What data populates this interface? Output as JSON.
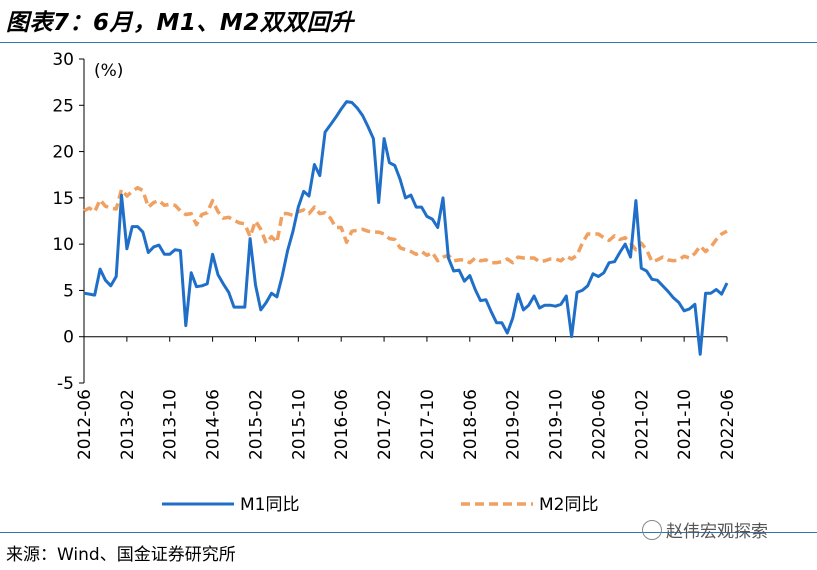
{
  "title": "图表7：6月，M1、M2双双回升",
  "source": "来源：Wind、国金证券研究所",
  "watermark": "赵伟宏观探索",
  "chart_data": {
    "type": "line",
    "unit": "(%)",
    "ylim": [
      -5,
      30
    ],
    "yticks": [
      -5,
      0,
      5,
      10,
      15,
      20,
      25,
      30
    ],
    "xlim": [
      "2012-06",
      "2022-06"
    ],
    "xticks": [
      "2012-06",
      "2013-02",
      "2013-10",
      "2014-06",
      "2015-02",
      "2015-10",
      "2016-06",
      "2017-02",
      "2017-10",
      "2018-06",
      "2019-02",
      "2019-10",
      "2020-06",
      "2021-02",
      "2021-10",
      "2022-06"
    ],
    "grid": false,
    "legend_position": "bottom",
    "series": [
      {
        "name": "M1同比",
        "color": "#1f6fc8",
        "style": "solid",
        "points": [
          [
            "2012-06",
            4.7
          ],
          [
            "2012-07",
            4.6
          ],
          [
            "2012-08",
            4.5
          ],
          [
            "2012-09",
            7.3
          ],
          [
            "2012-10",
            6.1
          ],
          [
            "2012-11",
            5.5
          ],
          [
            "2012-12",
            6.5
          ],
          [
            "2013-01",
            15.3
          ],
          [
            "2013-02",
            9.5
          ],
          [
            "2013-03",
            11.9
          ],
          [
            "2013-04",
            11.9
          ],
          [
            "2013-05",
            11.3
          ],
          [
            "2013-06",
            9.1
          ],
          [
            "2013-07",
            9.7
          ],
          [
            "2013-08",
            9.9
          ],
          [
            "2013-09",
            8.9
          ],
          [
            "2013-10",
            8.9
          ],
          [
            "2013-11",
            9.4
          ],
          [
            "2013-12",
            9.3
          ],
          [
            "2014-01",
            1.2
          ],
          [
            "2014-02",
            6.9
          ],
          [
            "2014-03",
            5.4
          ],
          [
            "2014-04",
            5.5
          ],
          [
            "2014-05",
            5.7
          ],
          [
            "2014-06",
            8.9
          ],
          [
            "2014-07",
            6.7
          ],
          [
            "2014-08",
            5.7
          ],
          [
            "2014-09",
            4.8
          ],
          [
            "2014-10",
            3.2
          ],
          [
            "2014-11",
            3.2
          ],
          [
            "2014-12",
            3.2
          ],
          [
            "2015-01",
            10.6
          ],
          [
            "2015-02",
            5.6
          ],
          [
            "2015-03",
            2.9
          ],
          [
            "2015-04",
            3.7
          ],
          [
            "2015-05",
            4.7
          ],
          [
            "2015-06",
            4.3
          ],
          [
            "2015-07",
            6.6
          ],
          [
            "2015-08",
            9.3
          ],
          [
            "2015-09",
            11.4
          ],
          [
            "2015-10",
            14.0
          ],
          [
            "2015-11",
            15.7
          ],
          [
            "2015-12",
            15.2
          ],
          [
            "2016-01",
            18.6
          ],
          [
            "2016-02",
            17.4
          ],
          [
            "2016-03",
            22.1
          ],
          [
            "2016-04",
            22.9
          ],
          [
            "2016-05",
            23.7
          ],
          [
            "2016-06",
            24.6
          ],
          [
            "2016-07",
            25.4
          ],
          [
            "2016-08",
            25.3
          ],
          [
            "2016-09",
            24.7
          ],
          [
            "2016-10",
            23.9
          ],
          [
            "2016-11",
            22.7
          ],
          [
            "2016-12",
            21.4
          ],
          [
            "2017-01",
            14.5
          ],
          [
            "2017-02",
            21.4
          ],
          [
            "2017-03",
            18.8
          ],
          [
            "2017-04",
            18.5
          ],
          [
            "2017-05",
            17.0
          ],
          [
            "2017-06",
            15.0
          ],
          [
            "2017-07",
            15.3
          ],
          [
            "2017-08",
            14.0
          ],
          [
            "2017-09",
            14.0
          ],
          [
            "2017-10",
            13.0
          ],
          [
            "2017-11",
            12.7
          ],
          [
            "2017-12",
            11.8
          ],
          [
            "2018-01",
            15.0
          ],
          [
            "2018-02",
            8.5
          ],
          [
            "2018-03",
            7.1
          ],
          [
            "2018-04",
            7.2
          ],
          [
            "2018-05",
            6.0
          ],
          [
            "2018-06",
            6.6
          ],
          [
            "2018-07",
            5.1
          ],
          [
            "2018-08",
            3.9
          ],
          [
            "2018-09",
            4.0
          ],
          [
            "2018-10",
            2.7
          ],
          [
            "2018-11",
            1.5
          ],
          [
            "2018-12",
            1.5
          ],
          [
            "2019-01",
            0.4
          ],
          [
            "2019-02",
            2.0
          ],
          [
            "2019-03",
            4.6
          ],
          [
            "2019-04",
            2.9
          ],
          [
            "2019-05",
            3.4
          ],
          [
            "2019-06",
            4.4
          ],
          [
            "2019-07",
            3.1
          ],
          [
            "2019-08",
            3.4
          ],
          [
            "2019-09",
            3.4
          ],
          [
            "2019-10",
            3.3
          ],
          [
            "2019-11",
            3.5
          ],
          [
            "2019-12",
            4.4
          ],
          [
            "2020-01",
            0.0
          ],
          [
            "2020-02",
            4.8
          ],
          [
            "2020-03",
            5.0
          ],
          [
            "2020-04",
            5.5
          ],
          [
            "2020-05",
            6.8
          ],
          [
            "2020-06",
            6.5
          ],
          [
            "2020-07",
            6.9
          ],
          [
            "2020-08",
            8.0
          ],
          [
            "2020-09",
            8.1
          ],
          [
            "2020-10",
            9.1
          ],
          [
            "2020-11",
            10.0
          ],
          [
            "2020-12",
            8.6
          ],
          [
            "2021-01",
            14.7
          ],
          [
            "2021-02",
            7.4
          ],
          [
            "2021-03",
            7.1
          ],
          [
            "2021-04",
            6.2
          ],
          [
            "2021-05",
            6.1
          ],
          [
            "2021-06",
            5.5
          ],
          [
            "2021-07",
            4.9
          ],
          [
            "2021-08",
            4.2
          ],
          [
            "2021-09",
            3.7
          ],
          [
            "2021-10",
            2.8
          ],
          [
            "2021-11",
            3.0
          ],
          [
            "2021-12",
            3.5
          ],
          [
            "2022-01",
            -1.9
          ],
          [
            "2022-02",
            4.7
          ],
          [
            "2022-03",
            4.7
          ],
          [
            "2022-04",
            5.1
          ],
          [
            "2022-05",
            4.6
          ],
          [
            "2022-06",
            5.8
          ]
        ]
      },
      {
        "name": "M2同比",
        "color": "#f0a060",
        "style": "dashed",
        "points": [
          [
            "2012-06",
            13.6
          ],
          [
            "2012-07",
            13.9
          ],
          [
            "2012-08",
            13.5
          ],
          [
            "2012-09",
            14.8
          ],
          [
            "2012-10",
            14.1
          ],
          [
            "2012-11",
            13.9
          ],
          [
            "2012-12",
            13.8
          ],
          [
            "2013-01",
            15.9
          ],
          [
            "2013-02",
            15.2
          ],
          [
            "2013-03",
            15.7
          ],
          [
            "2013-04",
            16.1
          ],
          [
            "2013-05",
            15.8
          ],
          [
            "2013-06",
            14.0
          ],
          [
            "2013-07",
            14.5
          ],
          [
            "2013-08",
            14.7
          ],
          [
            "2013-09",
            14.2
          ],
          [
            "2013-10",
            14.3
          ],
          [
            "2013-11",
            14.2
          ],
          [
            "2013-12",
            13.6
          ],
          [
            "2014-01",
            13.2
          ],
          [
            "2014-02",
            13.3
          ],
          [
            "2014-03",
            12.1
          ],
          [
            "2014-04",
            13.2
          ],
          [
            "2014-05",
            13.4
          ],
          [
            "2014-06",
            14.7
          ],
          [
            "2014-07",
            13.5
          ],
          [
            "2014-08",
            12.8
          ],
          [
            "2014-09",
            12.9
          ],
          [
            "2014-10",
            12.6
          ],
          [
            "2014-11",
            12.3
          ],
          [
            "2014-12",
            12.2
          ],
          [
            "2015-01",
            10.8
          ],
          [
            "2015-02",
            12.5
          ],
          [
            "2015-03",
            11.6
          ],
          [
            "2015-04",
            10.1
          ],
          [
            "2015-05",
            10.8
          ],
          [
            "2015-06",
            10.2
          ],
          [
            "2015-07",
            13.3
          ],
          [
            "2015-08",
            13.3
          ],
          [
            "2015-09",
            13.1
          ],
          [
            "2015-10",
            13.5
          ],
          [
            "2015-11",
            13.7
          ],
          [
            "2015-12",
            13.3
          ],
          [
            "2016-01",
            14.0
          ],
          [
            "2016-02",
            13.3
          ],
          [
            "2016-03",
            13.4
          ],
          [
            "2016-04",
            12.8
          ],
          [
            "2016-05",
            11.8
          ],
          [
            "2016-06",
            11.8
          ],
          [
            "2016-07",
            10.2
          ],
          [
            "2016-08",
            11.4
          ],
          [
            "2016-09",
            11.5
          ],
          [
            "2016-10",
            11.6
          ],
          [
            "2016-11",
            11.4
          ],
          [
            "2016-12",
            11.3
          ],
          [
            "2017-01",
            11.3
          ],
          [
            "2017-02",
            11.1
          ],
          [
            "2017-03",
            10.6
          ],
          [
            "2017-04",
            10.5
          ],
          [
            "2017-05",
            9.6
          ],
          [
            "2017-06",
            9.4
          ],
          [
            "2017-07",
            9.2
          ],
          [
            "2017-08",
            8.9
          ],
          [
            "2017-09",
            9.2
          ],
          [
            "2017-10",
            8.8
          ],
          [
            "2017-11",
            9.1
          ],
          [
            "2017-12",
            8.2
          ],
          [
            "2018-01",
            8.6
          ],
          [
            "2018-02",
            8.8
          ],
          [
            "2018-03",
            8.2
          ],
          [
            "2018-04",
            8.3
          ],
          [
            "2018-05",
            8.3
          ],
          [
            "2018-06",
            8.0
          ],
          [
            "2018-07",
            8.5
          ],
          [
            "2018-08",
            8.2
          ],
          [
            "2018-09",
            8.3
          ],
          [
            "2018-10",
            8.0
          ],
          [
            "2018-11",
            8.0
          ],
          [
            "2018-12",
            8.1
          ],
          [
            "2019-01",
            8.4
          ],
          [
            "2019-02",
            8.0
          ],
          [
            "2019-03",
            8.6
          ],
          [
            "2019-04",
            8.5
          ],
          [
            "2019-05",
            8.5
          ],
          [
            "2019-06",
            8.5
          ],
          [
            "2019-07",
            8.1
          ],
          [
            "2019-08",
            8.2
          ],
          [
            "2019-09",
            8.4
          ],
          [
            "2019-10",
            8.4
          ],
          [
            "2019-11",
            8.2
          ],
          [
            "2019-12",
            8.7
          ],
          [
            "2020-01",
            8.4
          ],
          [
            "2020-02",
            8.8
          ],
          [
            "2020-03",
            10.1
          ],
          [
            "2020-04",
            11.1
          ],
          [
            "2020-05",
            11.1
          ],
          [
            "2020-06",
            11.1
          ],
          [
            "2020-07",
            10.7
          ],
          [
            "2020-08",
            10.4
          ],
          [
            "2020-09",
            10.9
          ],
          [
            "2020-10",
            10.5
          ],
          [
            "2020-11",
            10.7
          ],
          [
            "2020-12",
            10.1
          ],
          [
            "2021-01",
            9.4
          ],
          [
            "2021-02",
            10.1
          ],
          [
            "2021-03",
            9.4
          ],
          [
            "2021-04",
            8.1
          ],
          [
            "2021-05",
            8.3
          ],
          [
            "2021-06",
            8.6
          ],
          [
            "2021-07",
            8.3
          ],
          [
            "2021-08",
            8.2
          ],
          [
            "2021-09",
            8.3
          ],
          [
            "2021-10",
            8.7
          ],
          [
            "2021-11",
            8.5
          ],
          [
            "2021-12",
            9.0
          ],
          [
            "2022-01",
            9.8
          ],
          [
            "2022-02",
            9.2
          ],
          [
            "2022-03",
            9.7
          ],
          [
            "2022-04",
            10.5
          ],
          [
            "2022-05",
            11.1
          ],
          [
            "2022-06",
            11.4
          ]
        ]
      }
    ]
  }
}
